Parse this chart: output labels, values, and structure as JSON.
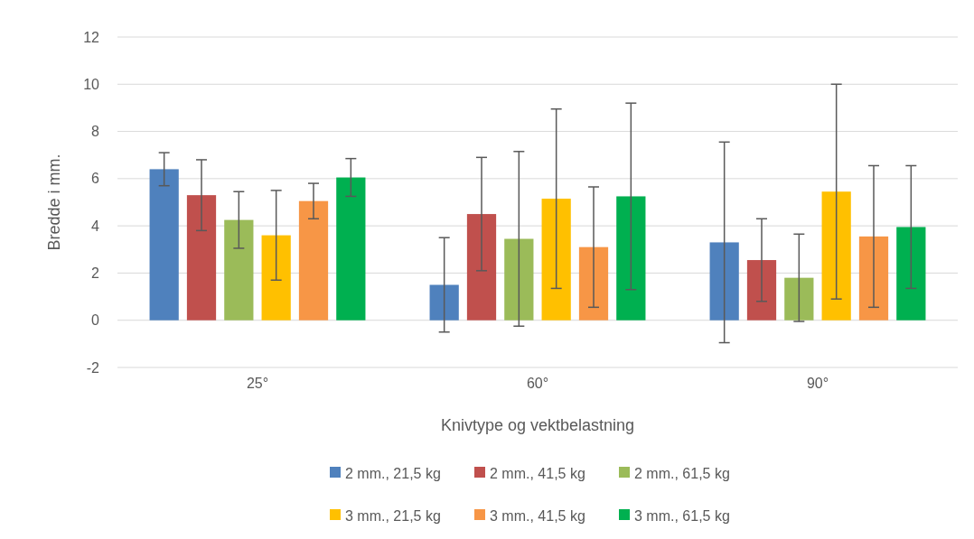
{
  "chart_data": {
    "type": "bar",
    "xlabel": "Knivtype og vektbelastning",
    "ylabel": "Bredde i mm.",
    "categories": [
      "25°",
      "60°",
      "90°"
    ],
    "series": [
      {
        "name": "2 mm., 21,5 kg",
        "color": "#4f81bd",
        "values": [
          6.4,
          1.5,
          3.3
        ],
        "errors": [
          0.7,
          2.0,
          4.25
        ]
      },
      {
        "name": "2 mm., 41,5 kg",
        "color": "#c0504d",
        "values": [
          5.3,
          4.5,
          2.55
        ],
        "errors": [
          1.5,
          2.4,
          1.75
        ]
      },
      {
        "name": "2 mm., 61,5 kg",
        "color": "#9bbb59",
        "values": [
          4.25,
          3.45,
          1.8
        ],
        "errors": [
          1.2,
          3.7,
          1.85
        ]
      },
      {
        "name": "3 mm., 21,5 kg",
        "color": "#ffc000",
        "values": [
          3.6,
          5.15,
          5.45
        ],
        "errors": [
          1.9,
          3.8,
          4.55
        ]
      },
      {
        "name": "3 mm., 41,5 kg",
        "color": "#f79646",
        "values": [
          5.05,
          3.1,
          3.55
        ],
        "errors": [
          0.75,
          2.55,
          3.0
        ]
      },
      {
        "name": "3 mm., 61,5 kg",
        "color": "#00b050",
        "values": [
          6.05,
          5.25,
          3.95
        ],
        "errors": [
          0.8,
          3.95,
          2.6
        ]
      }
    ],
    "ylim": [
      -2,
      12
    ],
    "yticks": [
      -2,
      0,
      2,
      4,
      6,
      8,
      10,
      12
    ],
    "grid": "y",
    "legend": "bottom"
  }
}
